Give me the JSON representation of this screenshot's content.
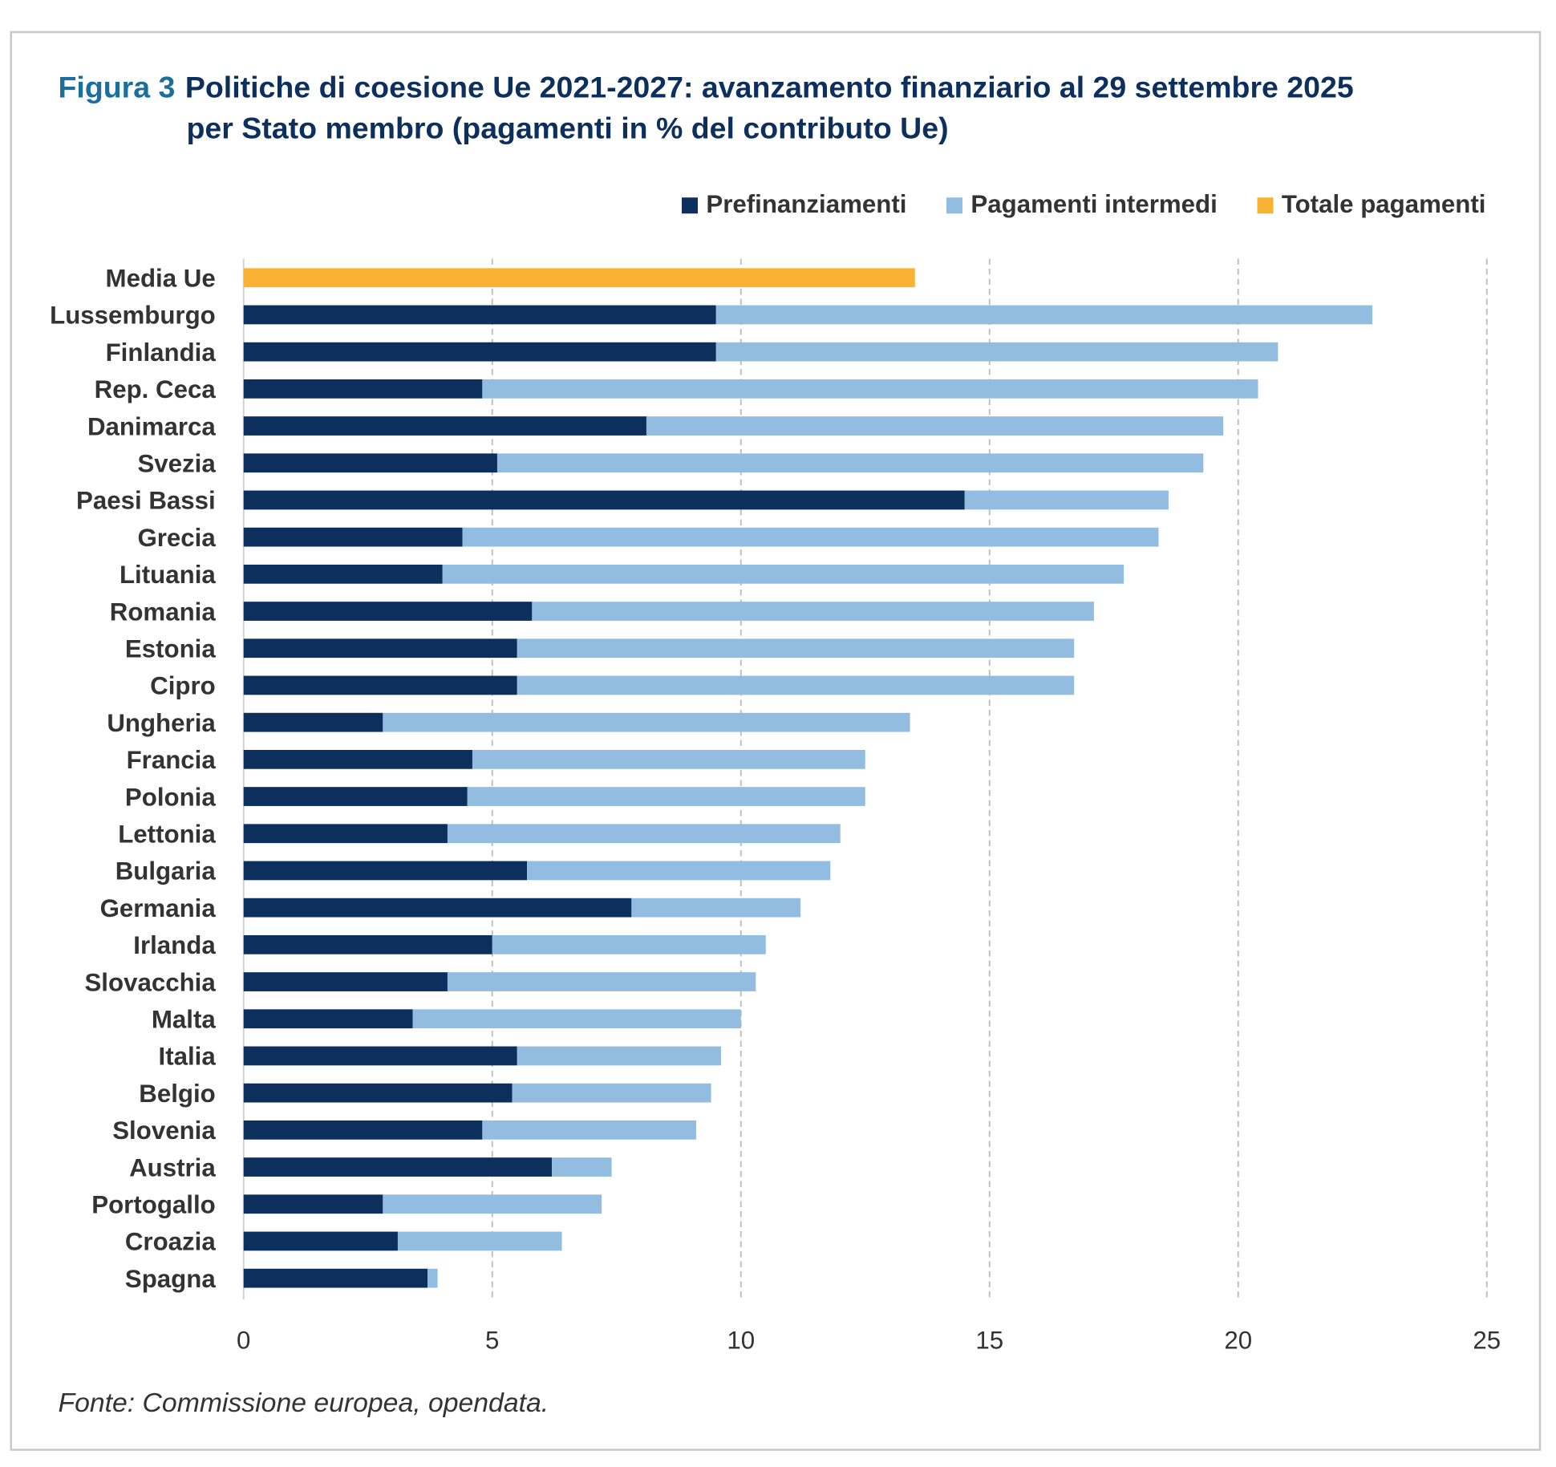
{
  "title": {
    "figure_label": "Figura 3",
    "line1": "Politiche di coesione Ue 2021-2027: avanzamento finanziario al 29 settembre 2025",
    "line2": "per Stato membro (pagamenti in % del contributo Ue)"
  },
  "source": "Fonte: Commissione europea, opendata.",
  "colors": {
    "prefin": "#0d2f5e",
    "intermedi": "#93bde0",
    "totale": "#f9b233"
  },
  "chart_data": {
    "type": "bar",
    "orientation": "horizontal",
    "stacked": true,
    "title": "Politiche di coesione Ue 2021-2027: avanzamento finanziario al 29 settembre 2025 per Stato membro (pagamenti in % del contributo Ue)",
    "xlim": [
      0,
      25
    ],
    "xticks": [
      0,
      5,
      10,
      15,
      20,
      25
    ],
    "xlabel": "",
    "ylabel": "",
    "grid": "vertical-dashed",
    "legend_position": "top-right",
    "legend": [
      "Prefinanziamenti",
      "Pagamenti intermedi",
      "Totale pagamenti"
    ],
    "categories": [
      "Media Ue",
      "Lussemburgo",
      "Finlandia",
      "Rep. Ceca",
      "Danimarca",
      "Svezia",
      "Paesi Bassi",
      "Grecia",
      "Lituania",
      "Romania",
      "Estonia",
      "Cipro",
      "Ungheria",
      "Francia",
      "Polonia",
      "Lettonia",
      "Bulgaria",
      "Germania",
      "Irlanda",
      "Slovacchia",
      "Malta",
      "Italia",
      "Belgio",
      "Slovenia",
      "Austria",
      "Portogallo",
      "Croazia",
      "Spagna"
    ],
    "series": [
      {
        "name": "Totale pagamenti",
        "values": [
          13.5,
          null,
          null,
          null,
          null,
          null,
          null,
          null,
          null,
          null,
          null,
          null,
          null,
          null,
          null,
          null,
          null,
          null,
          null,
          null,
          null,
          null,
          null,
          null,
          null,
          null,
          null,
          null
        ]
      },
      {
        "name": "Prefinanziamenti",
        "values": [
          null,
          9.5,
          9.5,
          4.8,
          8.1,
          5.1,
          14.5,
          4.4,
          4.0,
          5.8,
          5.5,
          5.5,
          2.8,
          4.6,
          4.5,
          4.1,
          5.7,
          7.8,
          5.0,
          4.1,
          3.4,
          5.5,
          5.4,
          4.8,
          6.2,
          2.8,
          3.1,
          3.7
        ]
      },
      {
        "name": "Pagamenti intermedi",
        "values": [
          null,
          13.2,
          11.3,
          15.6,
          11.6,
          14.2,
          4.1,
          14.0,
          13.7,
          11.3,
          11.2,
          11.2,
          10.6,
          7.9,
          8.0,
          7.9,
          6.1,
          3.4,
          5.5,
          6.2,
          6.6,
          4.1,
          4.0,
          4.3,
          1.2,
          4.4,
          3.3,
          0.2
        ]
      }
    ]
  }
}
